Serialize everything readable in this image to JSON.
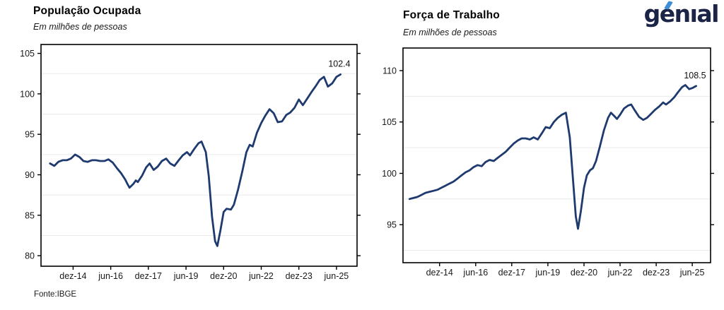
{
  "page": {
    "background": "#ffffff"
  },
  "logo": {
    "text": "genıal",
    "color": "#1b2347",
    "accent_color": "#3e8ed8"
  },
  "source_note": "Fonte:IBGE",
  "chart_data": [
    {
      "type": "line",
      "title": "População Ocupada",
      "subtitle": "Em milhões de pessoas",
      "end_label": "102.4",
      "line_color": "#1e3a6e",
      "grid": "minor-horizontal",
      "legend": "none",
      "x_tick_labels": [
        "dez-14",
        "jun-16",
        "dez-17",
        "jun-19",
        "dez-20",
        "jun-22",
        "dez-23",
        "jun-25"
      ],
      "x_tick_values": [
        2014.92,
        2016.42,
        2017.92,
        2019.42,
        2020.92,
        2022.42,
        2023.92,
        2025.42
      ],
      "y_ticks": [
        80,
        85,
        90,
        95,
        100,
        105
      ],
      "minor_gridlines": [
        82.5,
        87.5,
        92.5,
        97.5,
        102.5
      ],
      "xlim": [
        2013.64,
        2026.24
      ],
      "ylim": [
        78.7,
        106.1
      ],
      "series": [
        {
          "name": "População Ocupada (milhões)"
        }
      ],
      "x": [
        2014.0,
        2014.17,
        2014.33,
        2014.5,
        2014.67,
        2014.83,
        2015.0,
        2015.17,
        2015.33,
        2015.5,
        2015.67,
        2015.83,
        2016.0,
        2016.17,
        2016.33,
        2016.5,
        2016.67,
        2016.83,
        2017.0,
        2017.08,
        2017.17,
        2017.33,
        2017.42,
        2017.5,
        2017.67,
        2017.83,
        2017.97,
        2018.13,
        2018.29,
        2018.46,
        2018.63,
        2018.79,
        2018.96,
        2019.13,
        2019.29,
        2019.46,
        2019.58,
        2019.75,
        2019.92,
        2020.04,
        2020.21,
        2020.33,
        2020.46,
        2020.58,
        2020.67,
        2020.79,
        2020.92,
        2021.04,
        2021.21,
        2021.33,
        2021.5,
        2021.67,
        2021.83,
        2021.96,
        2022.08,
        2022.25,
        2022.42,
        2022.58,
        2022.75,
        2022.92,
        2023.08,
        2023.25,
        2023.42,
        2023.58,
        2023.75,
        2023.92,
        2024.08,
        2024.25,
        2024.42,
        2024.58,
        2024.75,
        2024.92,
        2025.08,
        2025.25,
        2025.42,
        2025.58
      ],
      "y": [
        91.4,
        91.1,
        91.6,
        91.8,
        91.8,
        92.0,
        92.5,
        92.2,
        91.7,
        91.6,
        91.8,
        91.8,
        91.7,
        91.7,
        91.9,
        91.5,
        90.8,
        90.2,
        89.4,
        88.9,
        88.4,
        88.9,
        89.3,
        89.1,
        89.9,
        90.9,
        91.4,
        90.6,
        91.0,
        91.7,
        92.0,
        91.4,
        91.1,
        91.8,
        92.4,
        92.8,
        92.4,
        93.2,
        93.9,
        94.1,
        92.8,
        89.8,
        84.8,
        81.8,
        81.2,
        83.1,
        85.4,
        85.8,
        85.7,
        86.3,
        88.2,
        90.5,
        92.8,
        93.7,
        93.5,
        95.2,
        96.4,
        97.3,
        98.1,
        97.6,
        96.5,
        96.6,
        97.4,
        97.7,
        98.3,
        99.3,
        98.6,
        99.4,
        100.2,
        100.9,
        101.7,
        102.1,
        100.9,
        101.3,
        102.1,
        102.4
      ]
    },
    {
      "type": "line",
      "title": "Força de Trabalho",
      "subtitle": "Em milhões de pessoas",
      "end_label": "108.5",
      "line_color": "#1e3a6e",
      "grid": "minor-horizontal",
      "legend": "none",
      "x_tick_labels": [
        "dez-14",
        "jun-16",
        "dez-17",
        "jun-19",
        "dez-20",
        "jun-22",
        "dez-23",
        "jun-25"
      ],
      "x_tick_values": [
        2014.92,
        2016.42,
        2017.92,
        2019.42,
        2020.92,
        2022.42,
        2023.92,
        2025.42
      ],
      "y_ticks": [
        95,
        100,
        105,
        110
      ],
      "minor_gridlines": [
        92.5,
        97.5,
        102.5,
        107.5
      ],
      "xlim": [
        2013.4,
        2026.18
      ],
      "ylim": [
        91.3,
        112.2
      ],
      "series": [
        {
          "name": "Força de Trabalho (milhões)"
        }
      ],
      "x": [
        2013.67,
        2013.83,
        2014.0,
        2014.17,
        2014.33,
        2014.5,
        2014.67,
        2014.83,
        2015.0,
        2015.17,
        2015.33,
        2015.5,
        2015.67,
        2015.83,
        2016.0,
        2016.17,
        2016.33,
        2016.5,
        2016.67,
        2016.83,
        2017.0,
        2017.17,
        2017.33,
        2017.5,
        2017.67,
        2017.83,
        2018.0,
        2018.17,
        2018.33,
        2018.5,
        2018.67,
        2018.83,
        2019.0,
        2019.17,
        2019.33,
        2019.5,
        2019.67,
        2019.83,
        2020.0,
        2020.17,
        2020.33,
        2020.46,
        2020.58,
        2020.67,
        2020.79,
        2020.92,
        2021.04,
        2021.17,
        2021.29,
        2021.42,
        2021.58,
        2021.75,
        2021.92,
        2022.04,
        2022.17,
        2022.29,
        2022.42,
        2022.58,
        2022.75,
        2022.88,
        2023.04,
        2023.21,
        2023.38,
        2023.54,
        2023.71,
        2023.88,
        2024.04,
        2024.21,
        2024.33,
        2024.5,
        2024.67,
        2024.83,
        2025.0,
        2025.13,
        2025.29,
        2025.42,
        2025.58
      ],
      "y": [
        97.5,
        97.6,
        97.7,
        97.9,
        98.1,
        98.2,
        98.3,
        98.4,
        98.6,
        98.8,
        99.0,
        99.2,
        99.5,
        99.8,
        100.1,
        100.3,
        100.6,
        100.8,
        100.7,
        101.1,
        101.3,
        101.2,
        101.5,
        101.8,
        102.1,
        102.5,
        102.9,
        103.2,
        103.4,
        103.4,
        103.3,
        103.5,
        103.3,
        103.9,
        104.5,
        104.4,
        105.0,
        105.4,
        105.7,
        105.9,
        103.5,
        99.5,
        95.8,
        94.6,
        96.3,
        98.6,
        99.8,
        100.3,
        100.5,
        101.2,
        102.6,
        104.2,
        105.4,
        105.9,
        105.6,
        105.3,
        105.7,
        106.3,
        106.6,
        106.7,
        106.1,
        105.5,
        105.2,
        105.4,
        105.8,
        106.2,
        106.5,
        106.9,
        106.7,
        107.0,
        107.4,
        107.9,
        108.4,
        108.6,
        108.2,
        108.3,
        108.5
      ]
    }
  ]
}
